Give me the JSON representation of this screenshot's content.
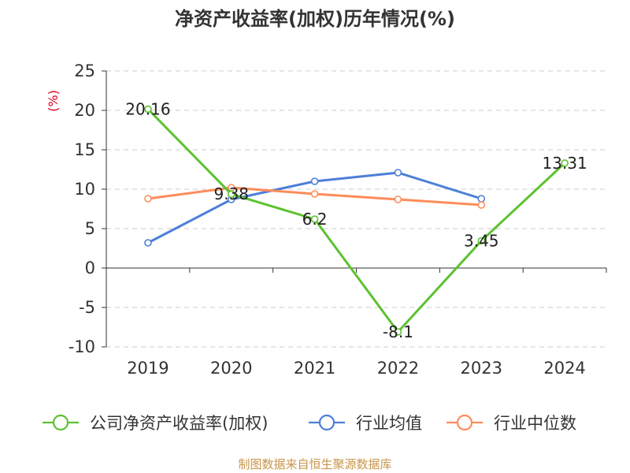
{
  "title": "净资产收益率(加权)历年情况(%)",
  "source_note": "制图数据来自恒生聚源数据库",
  "chart_data": {
    "type": "line",
    "title": "净资产收益率(加权)历年情况(%)",
    "ylabel": "(%)",
    "xlabel": "",
    "categories": [
      "2019",
      "2020",
      "2021",
      "2022",
      "2023",
      "2024"
    ],
    "ylim": [
      -10,
      25
    ],
    "yticks": [
      25,
      20,
      15,
      10,
      5,
      0,
      -5,
      -10
    ],
    "grid": true,
    "legend_position": "bottom",
    "series": [
      {
        "name": "公司净资产收益率(加权)",
        "color": "#5cc230",
        "values": [
          20.16,
          9.38,
          6.2,
          -8.1,
          3.45,
          13.31
        ],
        "labels": [
          "20.16",
          "9.38",
          "6.2",
          "-8.1",
          "3.45",
          "13.31"
        ]
      },
      {
        "name": "行业均值",
        "color": "#4d7fd9",
        "values": [
          3.2,
          8.7,
          11.0,
          12.1,
          8.8,
          null
        ]
      },
      {
        "name": "行业中位数",
        "color": "#ff8c5a",
        "values": [
          8.8,
          10.2,
          9.4,
          8.7,
          8.0,
          null
        ]
      }
    ]
  }
}
